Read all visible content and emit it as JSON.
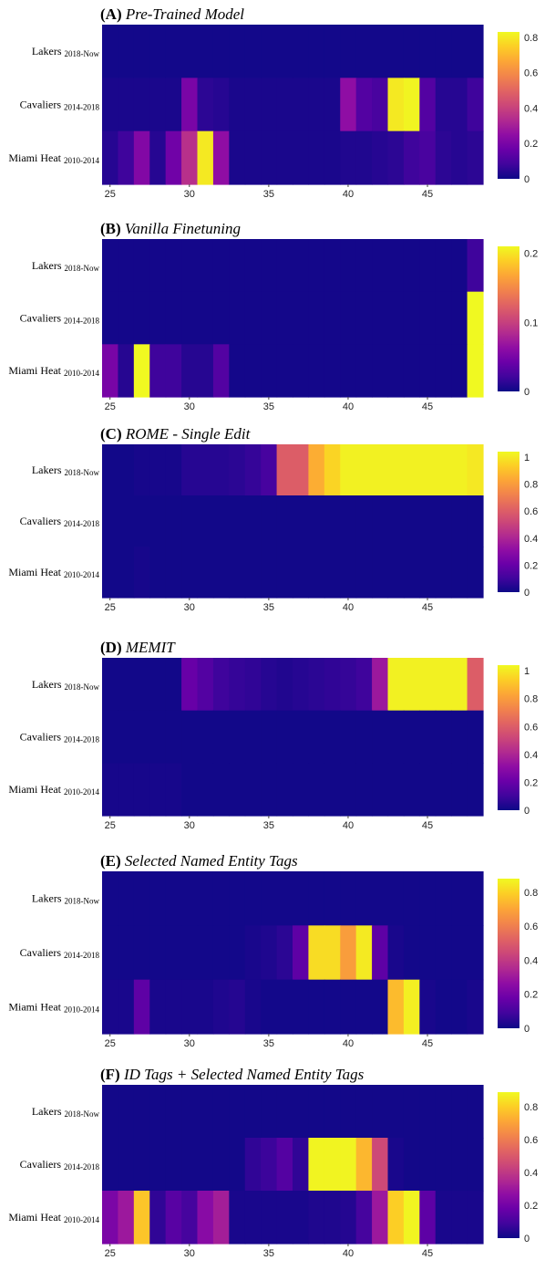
{
  "figure": {
    "x_ticks": [
      25,
      30,
      35,
      40,
      45
    ],
    "x_start_layer": 25,
    "x_end_layer": 48,
    "rows": [
      {
        "team": "Lakers",
        "years": "2018-Now"
      },
      {
        "team": "Cavaliers",
        "years": "2014-2018"
      },
      {
        "team": "Miami Heat",
        "years": "2010-2014"
      }
    ]
  },
  "chart_data": [
    {
      "type": "heatmap",
      "panel_label": "(A)",
      "title": "Pre-Trained Model",
      "colorbar": {
        "min": 0,
        "max": 0.83,
        "ticks": [
          0,
          0.2,
          0.4,
          0.6,
          0.8
        ],
        "colormap": "plasma"
      },
      "x": [
        25,
        26,
        27,
        28,
        29,
        30,
        31,
        32,
        33,
        34,
        35,
        36,
        37,
        38,
        39,
        40,
        41,
        42,
        43,
        44,
        45,
        46,
        47,
        48
      ],
      "z": [
        [
          0.01,
          0.01,
          0.01,
          0.01,
          0.01,
          0.01,
          0.01,
          0.01,
          0.01,
          0.01,
          0.01,
          0.01,
          0.01,
          0.01,
          0.01,
          0.01,
          0.01,
          0.01,
          0.01,
          0.01,
          0.01,
          0.01,
          0.01,
          0.01
        ],
        [
          0.02,
          0.02,
          0.02,
          0.02,
          0.02,
          0.2,
          0.05,
          0.04,
          0.02,
          0.02,
          0.02,
          0.02,
          0.02,
          0.02,
          0.02,
          0.25,
          0.12,
          0.1,
          0.8,
          0.82,
          0.12,
          0.04,
          0.04,
          0.08
        ],
        [
          0.04,
          0.08,
          0.22,
          0.04,
          0.18,
          0.35,
          0.8,
          0.25,
          0.02,
          0.02,
          0.02,
          0.02,
          0.02,
          0.02,
          0.02,
          0.03,
          0.03,
          0.04,
          0.05,
          0.08,
          0.1,
          0.05,
          0.04,
          0.05
        ]
      ]
    },
    {
      "type": "heatmap",
      "panel_label": "(B)",
      "title": "Vanilla Finetuning",
      "colorbar": {
        "min": 0,
        "max": 0.21,
        "ticks": [
          0,
          0.1,
          0.2
        ],
        "colormap": "plasma"
      },
      "x": [
        25,
        26,
        27,
        28,
        29,
        30,
        31,
        32,
        33,
        34,
        35,
        36,
        37,
        38,
        39,
        40,
        41,
        42,
        43,
        44,
        45,
        46,
        47,
        48
      ],
      "z": [
        [
          0.003,
          0.003,
          0.003,
          0.003,
          0.003,
          0.003,
          0.003,
          0.003,
          0.003,
          0.003,
          0.003,
          0.003,
          0.003,
          0.003,
          0.003,
          0.003,
          0.003,
          0.003,
          0.003,
          0.003,
          0.003,
          0.003,
          0.003,
          0.02
        ],
        [
          0.003,
          0.003,
          0.003,
          0.003,
          0.003,
          0.003,
          0.003,
          0.003,
          0.003,
          0.003,
          0.003,
          0.003,
          0.003,
          0.003,
          0.003,
          0.003,
          0.003,
          0.003,
          0.003,
          0.003,
          0.003,
          0.003,
          0.003,
          0.21
        ],
        [
          0.05,
          0.01,
          0.21,
          0.02,
          0.02,
          0.01,
          0.01,
          0.03,
          0.003,
          0.003,
          0.003,
          0.003,
          0.003,
          0.003,
          0.003,
          0.003,
          0.003,
          0.003,
          0.003,
          0.003,
          0.003,
          0.003,
          0.003,
          0.21
        ]
      ]
    },
    {
      "type": "heatmap",
      "panel_label": "(C)",
      "title": "ROME - Single Edit",
      "colorbar": {
        "min": 0,
        "max": 1.04,
        "ticks": [
          0,
          0.2,
          0.4,
          0.6,
          0.8,
          1
        ],
        "colormap": "plasma"
      },
      "x": [
        25,
        26,
        27,
        28,
        29,
        30,
        31,
        32,
        33,
        34,
        35,
        36,
        37,
        38,
        39,
        40,
        41,
        42,
        43,
        44,
        45,
        46,
        47,
        48
      ],
      "z": [
        [
          0.01,
          0.01,
          0.02,
          0.02,
          0.02,
          0.05,
          0.05,
          0.05,
          0.06,
          0.08,
          0.12,
          0.6,
          0.6,
          0.85,
          0.95,
          1.02,
          1.02,
          1.02,
          1.02,
          1.02,
          1.02,
          1.02,
          1.02,
          1.0
        ],
        [
          0.01,
          0.01,
          0.01,
          0.01,
          0.01,
          0.01,
          0.01,
          0.01,
          0.01,
          0.01,
          0.01,
          0.01,
          0.01,
          0.01,
          0.01,
          0.01,
          0.01,
          0.01,
          0.01,
          0.01,
          0.01,
          0.01,
          0.01,
          0.01
        ],
        [
          0.01,
          0.01,
          0.02,
          0.01,
          0.01,
          0.01,
          0.01,
          0.01,
          0.01,
          0.01,
          0.01,
          0.01,
          0.01,
          0.01,
          0.01,
          0.01,
          0.01,
          0.01,
          0.01,
          0.01,
          0.01,
          0.01,
          0.01,
          0.01
        ]
      ]
    },
    {
      "type": "heatmap",
      "panel_label": "(D)",
      "title": "MEMIT",
      "colorbar": {
        "min": 0,
        "max": 1.04,
        "ticks": [
          0,
          0.2,
          0.4,
          0.6,
          0.8,
          1
        ],
        "colormap": "plasma"
      },
      "x": [
        25,
        26,
        27,
        28,
        29,
        30,
        31,
        32,
        33,
        34,
        35,
        36,
        37,
        38,
        39,
        40,
        41,
        42,
        43,
        44,
        45,
        46,
        47,
        48
      ],
      "z": [
        [
          0.01,
          0.01,
          0.01,
          0.01,
          0.01,
          0.2,
          0.15,
          0.1,
          0.08,
          0.07,
          0.05,
          0.04,
          0.05,
          0.06,
          0.07,
          0.08,
          0.1,
          0.35,
          1.02,
          1.02,
          1.02,
          1.02,
          1.02,
          0.6
        ],
        [
          0.01,
          0.01,
          0.01,
          0.01,
          0.01,
          0.01,
          0.01,
          0.01,
          0.01,
          0.01,
          0.01,
          0.01,
          0.01,
          0.01,
          0.01,
          0.01,
          0.01,
          0.01,
          0.01,
          0.01,
          0.01,
          0.01,
          0.01,
          0.01
        ],
        [
          0.02,
          0.02,
          0.02,
          0.02,
          0.02,
          0.01,
          0.01,
          0.01,
          0.01,
          0.01,
          0.01,
          0.01,
          0.01,
          0.01,
          0.01,
          0.01,
          0.01,
          0.01,
          0.01,
          0.01,
          0.01,
          0.01,
          0.01,
          0.01
        ]
      ]
    },
    {
      "type": "heatmap",
      "panel_label": "(E)",
      "title": "Selected Named Entity Tags",
      "colorbar": {
        "min": 0,
        "max": 0.88,
        "ticks": [
          0,
          0.2,
          0.4,
          0.6,
          0.8
        ],
        "colormap": "plasma"
      },
      "x": [
        25,
        26,
        27,
        28,
        29,
        30,
        31,
        32,
        33,
        34,
        35,
        36,
        37,
        38,
        39,
        40,
        41,
        42,
        43,
        44,
        45,
        46,
        47,
        48
      ],
      "z": [
        [
          0.01,
          0.01,
          0.01,
          0.01,
          0.01,
          0.01,
          0.01,
          0.01,
          0.01,
          0.01,
          0.01,
          0.01,
          0.01,
          0.01,
          0.01,
          0.01,
          0.01,
          0.01,
          0.01,
          0.01,
          0.01,
          0.01,
          0.01,
          0.01
        ],
        [
          0.01,
          0.01,
          0.01,
          0.01,
          0.01,
          0.01,
          0.01,
          0.01,
          0.01,
          0.02,
          0.03,
          0.05,
          0.15,
          0.82,
          0.82,
          0.68,
          0.85,
          0.15,
          0.02,
          0.01,
          0.01,
          0.01,
          0.01,
          0.01
        ],
        [
          0.02,
          0.02,
          0.15,
          0.02,
          0.02,
          0.02,
          0.02,
          0.03,
          0.04,
          0.02,
          0.01,
          0.01,
          0.01,
          0.01,
          0.01,
          0.01,
          0.01,
          0.01,
          0.75,
          0.86,
          0.02,
          0.01,
          0.01,
          0.02
        ]
      ]
    },
    {
      "type": "heatmap",
      "panel_label": "(F)",
      "title": "ID Tags + Selected Named Entity Tags",
      "colorbar": {
        "min": 0,
        "max": 0.89,
        "ticks": [
          0,
          0.2,
          0.4,
          0.6,
          0.8
        ],
        "colormap": "plasma"
      },
      "x": [
        25,
        26,
        27,
        28,
        29,
        30,
        31,
        32,
        33,
        34,
        35,
        36,
        37,
        38,
        39,
        40,
        41,
        42,
        43,
        44,
        45,
        46,
        47,
        48
      ],
      "z": [
        [
          0.01,
          0.01,
          0.01,
          0.01,
          0.01,
          0.01,
          0.01,
          0.01,
          0.01,
          0.01,
          0.01,
          0.01,
          0.01,
          0.01,
          0.01,
          0.01,
          0.01,
          0.01,
          0.01,
          0.01,
          0.01,
          0.01,
          0.01,
          0.01
        ],
        [
          0.01,
          0.01,
          0.01,
          0.01,
          0.01,
          0.01,
          0.01,
          0.01,
          0.01,
          0.06,
          0.08,
          0.13,
          0.06,
          0.88,
          0.88,
          0.88,
          0.75,
          0.45,
          0.02,
          0.01,
          0.01,
          0.01,
          0.01,
          0.01
        ],
        [
          0.22,
          0.3,
          0.78,
          0.06,
          0.14,
          0.1,
          0.25,
          0.32,
          0.02,
          0.02,
          0.02,
          0.02,
          0.02,
          0.03,
          0.03,
          0.04,
          0.1,
          0.3,
          0.8,
          0.88,
          0.15,
          0.02,
          0.02,
          0.02
        ]
      ]
    }
  ]
}
